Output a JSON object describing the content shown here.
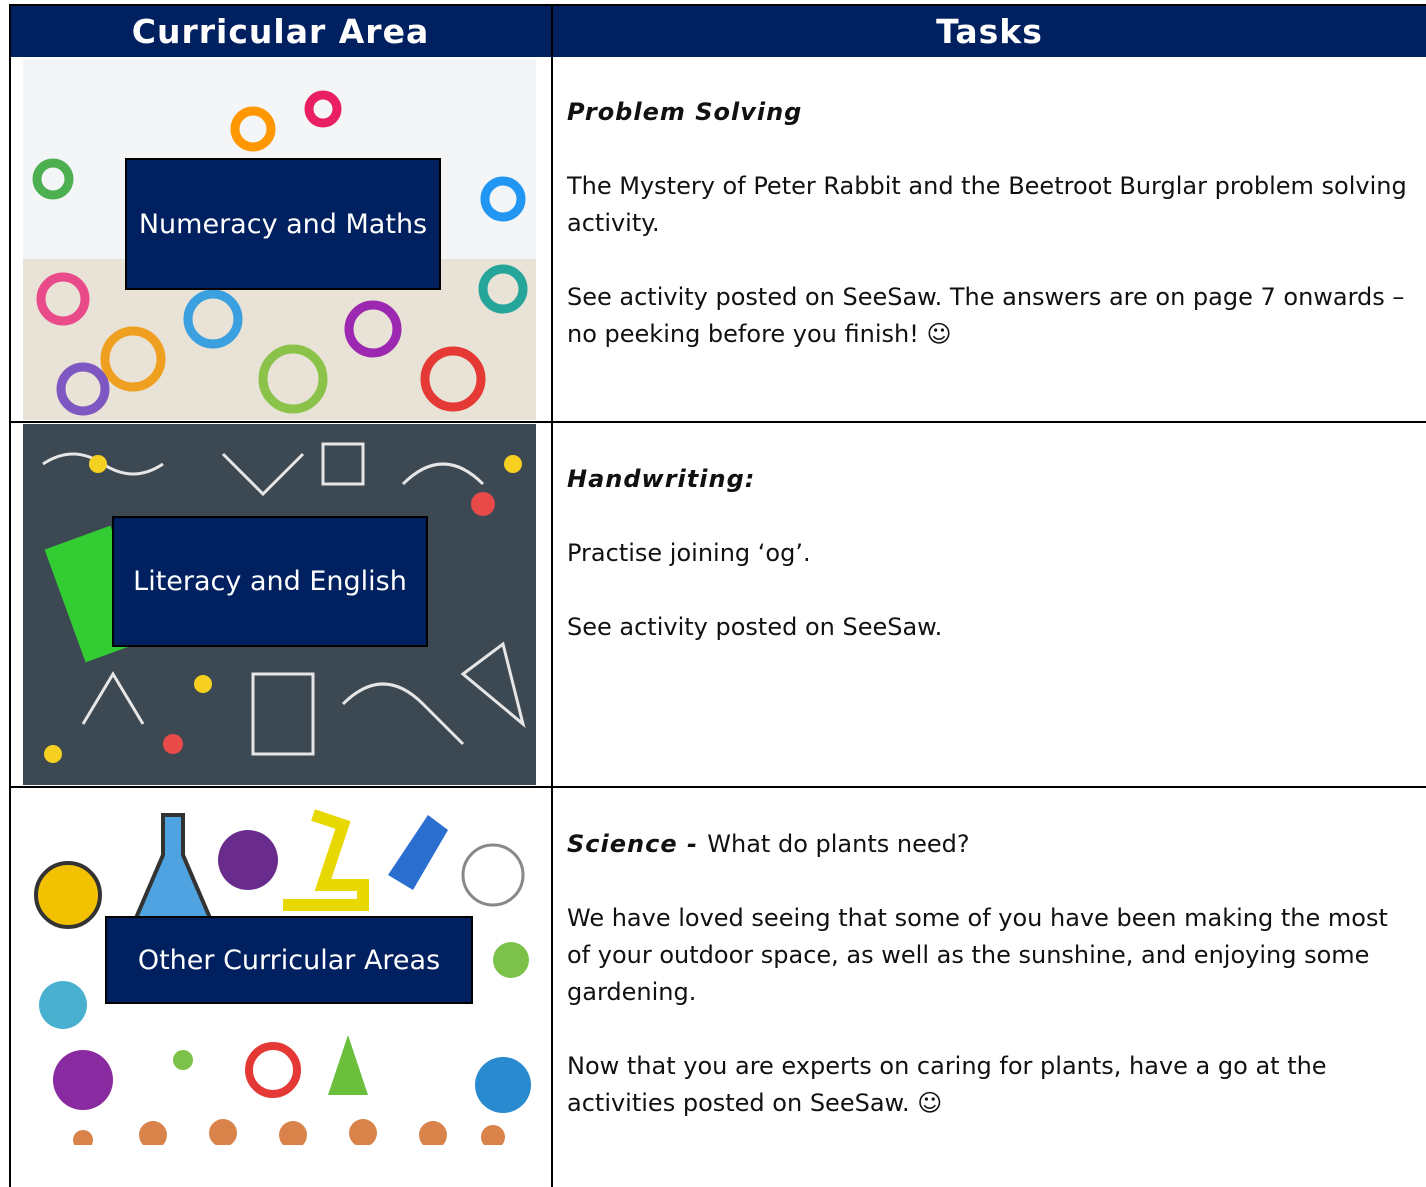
{
  "header": {
    "columns": [
      "Curricular Area",
      "Tasks"
    ]
  },
  "rows": [
    {
      "area": "Numeracy and Maths",
      "heading": "Problem Solving",
      "paragraphs": [
        "The Mystery of Peter Rabbit and the Beetroot Burglar problem solving activity.",
        "See activity posted on SeeSaw. The answers are on page 7 onwards – no peeking before you finish! ☺"
      ]
    },
    {
      "area": "Literacy and English",
      "heading": "Handwriting:",
      "paragraphs": [
        "Practise joining ‘og’.",
        "See activity posted on SeeSaw."
      ]
    },
    {
      "area": "Other Curricular Areas",
      "heading": "Science -",
      "heading_rest": "What do plants need?",
      "paragraphs": [
        "We have loved seeing that some of you have been making the most of your outdoor space, as well as the sunshine, and enjoying some gardening.",
        "Now that you are experts on caring for plants, have a go at the activities posted on SeeSaw. ☺"
      ]
    }
  ]
}
